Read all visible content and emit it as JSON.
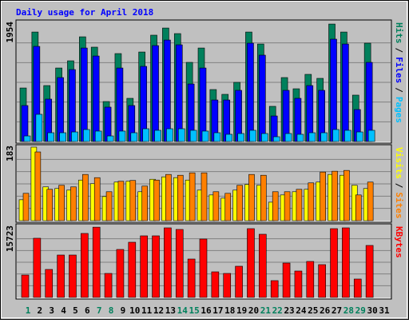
{
  "chart_data": [
    {
      "type": "bar",
      "title": "Daily usage for April 2018",
      "legend_separator": "/",
      "ylim": [
        0,
        1954
      ],
      "yticks": [
        1954
      ],
      "series": [
        {
          "name": "Hits",
          "color": "#00805c",
          "values": [
            884,
            1808,
            924,
            1214,
            1333,
            1729,
            1558,
            660,
            1452,
            713,
            1478,
            1756,
            1874,
            1782,
            1307,
            1544,
            858,
            779,
            977,
            1808,
            1610,
            581,
            1056,
            871,
            1109,
            1043,
            1940,
            1808,
            766,
            1624,
            null
          ]
        },
        {
          "name": "Files",
          "color": "#0000ff",
          "values": [
            594,
            1571,
            700,
            1056,
            1188,
            1544,
            1412,
            568,
            1214,
            594,
            1241,
            1584,
            1676,
            1597,
            950,
            1214,
            686,
            686,
            845,
            1624,
            1426,
            422,
            845,
            713,
            924,
            845,
            1690,
            1610,
            528,
            1307,
            null
          ]
        },
        {
          "name": "Pages",
          "color": "#00c0ff",
          "values": [
            92,
            449,
            145,
            145,
            158,
            198,
            172,
            92,
            172,
            145,
            211,
            185,
            211,
            211,
            185,
            172,
            145,
            119,
            132,
            185,
            132,
            79,
            132,
            119,
            145,
            145,
            198,
            185,
            158,
            185,
            null
          ]
        }
      ]
    },
    {
      "type": "bar",
      "legend_separator": "/",
      "ylim": [
        0,
        183
      ],
      "yticks": [
        183
      ],
      "series": [
        {
          "name": "Visits",
          "color": "#ffff00",
          "values": [
            52,
            183,
            84,
            80,
            76,
            101,
            92,
            60,
            96,
            98,
            72,
            103,
            109,
            107,
            101,
            76,
            64,
            56,
            76,
            90,
            88,
            46,
            64,
            72,
            78,
            96,
            115,
            113,
            88,
            80,
            null
          ]
        },
        {
          "name": "Sites",
          "color": "#ff8000",
          "values": [
            68,
            171,
            78,
            88,
            84,
            115,
            107,
            72,
            98,
            100,
            86,
            101,
            115,
            113,
            119,
            119,
            72,
            68,
            88,
            115,
            113,
            72,
            72,
            78,
            94,
            121,
            123,
            125,
            64,
            96,
            null
          ]
        }
      ]
    },
    {
      "type": "bar",
      "ylim": [
        0,
        15723
      ],
      "yticks": [
        15723
      ],
      "categories": [
        "1",
        "2",
        "3",
        "4",
        "5",
        "6",
        "7",
        "8",
        "9",
        "10",
        "11",
        "12",
        "13",
        "14",
        "15",
        "16",
        "17",
        "18",
        "19",
        "20",
        "21",
        "22",
        "23",
        "24",
        "25",
        "26",
        "27",
        "28",
        "29",
        "30",
        "31"
      ],
      "category_colors": [
        "#00805c",
        "#000000",
        "#000000",
        "#000000",
        "#000000",
        "#000000",
        "#00805c",
        "#00805c",
        "#000000",
        "#000000",
        "#000000",
        "#000000",
        "#000000",
        "#00805c",
        "#00805c",
        "#000000",
        "#000000",
        "#000000",
        "#000000",
        "#000000",
        "#00805c",
        "#00805c",
        "#000000",
        "#000000",
        "#000000",
        "#000000",
        "#000000",
        "#00805c",
        "#00805c",
        "#000000",
        "#000000"
      ],
      "series": [
        {
          "name": "KBytes",
          "color": "#ff0000",
          "values": [
            5004,
            13224,
            6255,
            9471,
            9471,
            14296,
            15700,
            5361,
            10722,
            12330,
            13760,
            13760,
            15547,
            15190,
            8578,
            13045,
            5718,
            5361,
            6969,
            15368,
            14117,
            3753,
            7684,
            5897,
            8042,
            7327,
            15368,
            15547,
            4110,
            11616,
            null
          ]
        }
      ]
    }
  ]
}
